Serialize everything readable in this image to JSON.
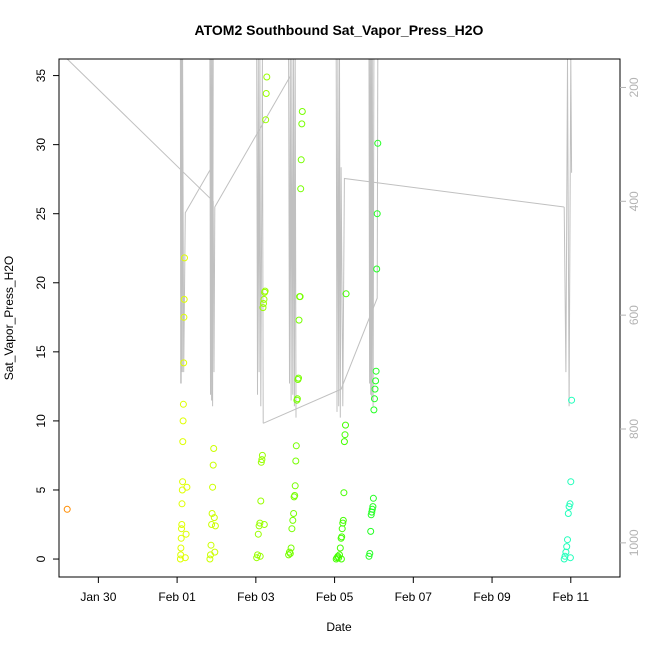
{
  "chart_data": {
    "type": "scatter",
    "title": "ATOM2 Southbound Sat_Vapor_Press_H2O",
    "xlabel": "Date",
    "ylabel": "Sat_Vapor_Press_H2O",
    "ylim": [
      -1.3,
      36.2
    ],
    "xlim": [
      "2022-01-29T00:00:00",
      "2022-02-12T06:00:00"
    ],
    "x_ticks": [
      {
        "date": "2022-01-30",
        "label": "Jan 30"
      },
      {
        "date": "2022-02-01",
        "label": "Feb 01"
      },
      {
        "date": "2022-02-03",
        "label": "Feb 03"
      },
      {
        "date": "2022-02-05",
        "label": "Feb 05"
      },
      {
        "date": "2022-02-07",
        "label": "Feb 07"
      },
      {
        "date": "2022-02-09",
        "label": "Feb 09"
      },
      {
        "date": "2022-02-11",
        "label": "Feb 11"
      }
    ],
    "y_ticks": [
      0,
      5,
      10,
      15,
      20,
      25,
      30,
      35
    ],
    "y2_label": "",
    "y2_lim": [
      1060,
      150
    ],
    "y2_ticks": [
      200,
      400,
      600,
      800,
      1000
    ],
    "grid": false,
    "point_groups": [
      {
        "color": "#ff8c00",
        "points": [
          [
            "2022-01-29T05:00:00",
            3.6
          ]
        ]
      },
      {
        "color": "#dfff00",
        "points": [
          [
            "2022-02-01T02:00:00",
            0.0
          ],
          [
            "2022-02-01T02:10:00",
            0.3
          ],
          [
            "2022-02-01T02:20:00",
            0.8
          ],
          [
            "2022-02-01T02:30:00",
            1.5
          ],
          [
            "2022-02-01T02:40:00",
            2.2
          ],
          [
            "2022-02-01T02:50:00",
            2.5
          ],
          [
            "2022-02-01T03:00:00",
            4.0
          ],
          [
            "2022-02-01T03:10:00",
            5.0
          ],
          [
            "2022-02-01T03:20:00",
            5.6
          ],
          [
            "2022-02-01T03:30:00",
            8.5
          ],
          [
            "2022-02-01T03:40:00",
            10.0
          ],
          [
            "2022-02-01T03:50:00",
            11.2
          ],
          [
            "2022-02-01T04:00:00",
            14.2
          ],
          [
            "2022-02-01T04:10:00",
            17.5
          ],
          [
            "2022-02-01T04:20:00",
            18.8
          ],
          [
            "2022-02-01T04:30:00",
            21.8
          ],
          [
            "2022-02-01T05:00:00",
            0.1
          ],
          [
            "2022-02-01T05:30:00",
            1.8
          ],
          [
            "2022-02-01T06:00:00",
            5.2
          ]
        ]
      },
      {
        "color": "#ccff00",
        "points": [
          [
            "2022-02-01T20:00:00",
            0.0
          ],
          [
            "2022-02-01T20:20:00",
            0.3
          ],
          [
            "2022-02-01T20:40:00",
            1.0
          ],
          [
            "2022-02-01T21:00:00",
            2.5
          ],
          [
            "2022-02-01T21:20:00",
            3.3
          ],
          [
            "2022-02-01T21:40:00",
            5.2
          ],
          [
            "2022-02-01T22:00:00",
            6.8
          ],
          [
            "2022-02-01T22:20:00",
            8.0
          ],
          [
            "2022-02-01T22:40:00",
            3.0
          ],
          [
            "2022-02-01T23:00:00",
            0.5
          ],
          [
            "2022-02-01T23:20:00",
            2.4
          ]
        ]
      },
      {
        "color": "#99ff00",
        "points": [
          [
            "2022-02-03T00:30:00",
            0.1
          ],
          [
            "2022-02-03T01:00:00",
            0.3
          ],
          [
            "2022-02-03T01:30:00",
            1.8
          ],
          [
            "2022-02-03T02:00:00",
            2.4
          ],
          [
            "2022-02-03T02:30:00",
            2.6
          ],
          [
            "2022-02-03T03:00:00",
            4.2
          ],
          [
            "2022-02-03T03:20:00",
            7.0
          ],
          [
            "2022-02-03T03:40:00",
            7.2
          ],
          [
            "2022-02-03T04:00:00",
            7.5
          ],
          [
            "2022-02-03T04:20:00",
            18.2
          ],
          [
            "2022-02-03T04:40:00",
            18.5
          ],
          [
            "2022-02-03T05:00:00",
            18.8
          ],
          [
            "2022-02-03T05:20:00",
            19.3
          ],
          [
            "2022-02-03T05:40:00",
            19.4
          ],
          [
            "2022-02-03T06:00:00",
            31.8
          ],
          [
            "2022-02-03T06:20:00",
            33.7
          ],
          [
            "2022-02-03T06:40:00",
            34.9
          ],
          [
            "2022-02-03T02:40:00",
            0.2
          ],
          [
            "2022-02-03T05:10:00",
            2.5
          ]
        ]
      },
      {
        "color": "#77ff00",
        "points": [
          [
            "2022-02-03T20:00:00",
            0.3
          ],
          [
            "2022-02-03T20:30:00",
            0.5
          ],
          [
            "2022-02-03T21:00:00",
            0.4
          ],
          [
            "2022-02-03T21:30:00",
            0.8
          ],
          [
            "2022-02-03T22:00:00",
            2.2
          ],
          [
            "2022-02-03T22:30:00",
            2.8
          ],
          [
            "2022-02-03T23:00:00",
            3.3
          ],
          [
            "2022-02-03T23:20:00",
            4.5
          ],
          [
            "2022-02-03T23:40:00",
            4.6
          ],
          [
            "2022-02-04T00:00:00",
            5.3
          ],
          [
            "2022-02-04T00:20:00",
            7.1
          ],
          [
            "2022-02-04T00:40:00",
            8.2
          ],
          [
            "2022-02-04T01:00:00",
            11.5
          ],
          [
            "2022-02-04T01:20:00",
            11.6
          ],
          [
            "2022-02-04T01:40:00",
            13.0
          ],
          [
            "2022-02-04T02:00:00",
            13.1
          ],
          [
            "2022-02-04T02:20:00",
            17.3
          ],
          [
            "2022-02-04T02:40:00",
            19.0
          ],
          [
            "2022-02-04T03:00:00",
            19.0
          ],
          [
            "2022-02-04T03:20:00",
            26.8
          ],
          [
            "2022-02-04T03:40:00",
            28.9
          ],
          [
            "2022-02-04T04:00:00",
            31.5
          ],
          [
            "2022-02-04T04:20:00",
            32.4
          ]
        ]
      },
      {
        "color": "#44ff00",
        "points": [
          [
            "2022-02-05T01:00:00",
            0.0
          ],
          [
            "2022-02-05T01:30:00",
            0.1
          ],
          [
            "2022-02-05T02:00:00",
            0.2
          ],
          [
            "2022-02-05T02:30:00",
            0.1
          ],
          [
            "2022-02-05T03:00:00",
            0.3
          ],
          [
            "2022-02-05T03:30:00",
            0.8
          ],
          [
            "2022-02-05T04:00:00",
            1.5
          ],
          [
            "2022-02-05T04:20:00",
            1.6
          ],
          [
            "2022-02-05T04:40:00",
            2.2
          ],
          [
            "2022-02-05T05:00:00",
            2.6
          ],
          [
            "2022-02-05T05:20:00",
            2.8
          ],
          [
            "2022-02-05T05:40:00",
            4.8
          ],
          [
            "2022-02-05T06:00:00",
            8.5
          ],
          [
            "2022-02-05T06:20:00",
            9.0
          ],
          [
            "2022-02-05T06:40:00",
            9.7
          ],
          [
            "2022-02-05T07:00:00",
            19.2
          ],
          [
            "2022-02-05T04:10:00",
            0.0
          ]
        ]
      },
      {
        "color": "#22ff22",
        "points": [
          [
            "2022-02-05T21:00:00",
            0.2
          ],
          [
            "2022-02-05T21:30:00",
            0.4
          ],
          [
            "2022-02-05T22:00:00",
            2.0
          ],
          [
            "2022-02-05T22:20:00",
            3.2
          ],
          [
            "2022-02-05T22:40:00",
            3.4
          ],
          [
            "2022-02-05T23:00:00",
            3.6
          ],
          [
            "2022-02-05T23:20:00",
            3.8
          ],
          [
            "2022-02-05T23:40:00",
            4.4
          ],
          [
            "2022-02-06T00:00:00",
            10.8
          ],
          [
            "2022-02-06T00:20:00",
            11.6
          ],
          [
            "2022-02-06T00:40:00",
            12.3
          ],
          [
            "2022-02-06T01:00:00",
            12.9
          ],
          [
            "2022-02-06T01:20:00",
            13.6
          ],
          [
            "2022-02-06T01:40:00",
            21.0
          ],
          [
            "2022-02-06T02:00:00",
            25.0
          ],
          [
            "2022-02-06T02:20:00",
            30.1
          ]
        ]
      },
      {
        "color": "#22ffbb",
        "points": [
          [
            "2022-02-10T20:00:00",
            0.0
          ],
          [
            "2022-02-10T20:30:00",
            0.2
          ],
          [
            "2022-02-10T21:00:00",
            0.5
          ],
          [
            "2022-02-10T21:30:00",
            0.9
          ],
          [
            "2022-02-10T22:00:00",
            1.4
          ],
          [
            "2022-02-10T22:30:00",
            3.3
          ],
          [
            "2022-02-10T23:00:00",
            3.8
          ],
          [
            "2022-02-10T23:30:00",
            4.0
          ],
          [
            "2022-02-11T00:00:00",
            5.6
          ],
          [
            "2022-02-11T00:30:00",
            11.5
          ],
          [
            "2022-02-10T23:45:00",
            0.1
          ]
        ]
      }
    ],
    "pressure_traces": [
      {
        "color": "#c0c0c0",
        "points": [
          [
            "2022-01-29T05:00:00",
            150
          ],
          [
            "2022-02-01T22:00:00",
            400
          ],
          [
            "2022-02-01T22:30:00",
            700
          ],
          [
            "2022-02-01T23:00:00",
            410
          ],
          [
            "2022-02-03T21:00:00",
            180
          ]
        ]
      },
      {
        "color": "#c0c0c0",
        "points": [
          [
            "2022-02-01T02:00:00",
            150
          ],
          [
            "2022-02-01T02:10:00",
            720
          ],
          [
            "2022-02-01T02:20:00",
            150
          ],
          [
            "2022-02-01T02:30:00",
            720
          ],
          [
            "2022-02-01T02:40:00",
            150
          ],
          [
            "2022-02-01T02:50:00",
            700
          ],
          [
            "2022-02-01T03:00:00",
            150
          ],
          [
            "2022-02-01T03:10:00",
            700
          ],
          [
            "2022-02-01T03:20:00",
            150
          ],
          [
            "2022-02-01T04:00:00",
            700
          ],
          [
            "2022-02-01T05:00:00",
            420
          ],
          [
            "2022-02-01T21:00:00",
            340
          ]
        ]
      },
      {
        "color": "#c0c0c0",
        "points": [
          [
            "2022-02-01T20:00:00",
            150
          ],
          [
            "2022-02-01T20:20:00",
            740
          ],
          [
            "2022-02-01T20:40:00",
            150
          ],
          [
            "2022-02-01T21:00:00",
            750
          ],
          [
            "2022-02-01T21:20:00",
            150
          ],
          [
            "2022-02-01T21:40:00",
            760
          ],
          [
            "2022-02-01T22:00:00",
            150
          ]
        ]
      },
      {
        "color": "#c0c0c0",
        "points": [
          [
            "2022-02-03T00:30:00",
            150
          ],
          [
            "2022-02-03T01:00:00",
            740
          ],
          [
            "2022-02-03T01:30:00",
            150
          ],
          [
            "2022-02-03T02:00:00",
            700
          ],
          [
            "2022-02-03T02:30:00",
            150
          ],
          [
            "2022-02-03T03:00:00",
            760
          ],
          [
            "2022-02-03T04:00:00",
            150
          ],
          [
            "2022-02-03T04:30:00",
            790
          ]
        ]
      },
      {
        "color": "#c0c0c0",
        "points": [
          [
            "2022-02-03T20:00:00",
            150
          ],
          [
            "2022-02-03T20:30:00",
            720
          ],
          [
            "2022-02-03T21:00:00",
            150
          ],
          [
            "2022-02-03T21:30:00",
            750
          ],
          [
            "2022-02-03T22:00:00",
            150
          ],
          [
            "2022-02-03T22:30:00",
            740
          ],
          [
            "2022-02-03T23:00:00",
            150
          ],
          [
            "2022-02-03T23:30:00",
            760
          ],
          [
            "2022-02-04T00:00:00",
            150
          ],
          [
            "2022-02-04T00:30:00",
            780
          ]
        ]
      },
      {
        "color": "#c0c0c0",
        "points": [
          [
            "2022-02-03T04:30:00",
            790
          ],
          [
            "2022-02-05T04:00:00",
            730
          ],
          [
            "2022-02-06T02:00:00",
            570
          ],
          [
            "2022-02-06T02:20:00",
            150
          ]
        ]
      },
      {
        "color": "#c0c0c0",
        "points": [
          [
            "2022-02-05T01:00:00",
            150
          ],
          [
            "2022-02-05T01:30:00",
            770
          ],
          [
            "2022-02-05T02:00:00",
            150
          ],
          [
            "2022-02-05T02:30:00",
            760
          ],
          [
            "2022-02-05T03:00:00",
            150
          ],
          [
            "2022-02-05T03:30:00",
            780
          ],
          [
            "2022-02-05T04:00:00",
            340
          ],
          [
            "2022-02-05T05:00:00",
            760
          ],
          [
            "2022-02-05T06:00:00",
            360
          ],
          [
            "2022-02-10T20:00:00",
            410
          ]
        ]
      },
      {
        "color": "#c0c0c0",
        "points": [
          [
            "2022-02-05T21:00:00",
            150
          ],
          [
            "2022-02-05T21:20:00",
            720
          ],
          [
            "2022-02-05T21:40:00",
            150
          ],
          [
            "2022-02-05T22:00:00",
            740
          ],
          [
            "2022-02-05T22:20:00",
            150
          ],
          [
            "2022-02-05T22:40:00",
            750
          ],
          [
            "2022-02-05T23:00:00",
            150
          ],
          [
            "2022-02-05T23:30:00",
            760
          ],
          [
            "2022-02-06T00:00:00",
            150
          ]
        ]
      },
      {
        "color": "#c0c0c0",
        "points": [
          [
            "2022-02-10T20:00:00",
            410
          ],
          [
            "2022-02-10T21:00:00",
            700
          ],
          [
            "2022-02-10T22:00:00",
            150
          ],
          [
            "2022-02-10T23:00:00",
            760
          ],
          [
            "2022-02-11T00:00:00",
            150
          ],
          [
            "2022-02-11T00:30:00",
            350
          ]
        ]
      }
    ]
  }
}
